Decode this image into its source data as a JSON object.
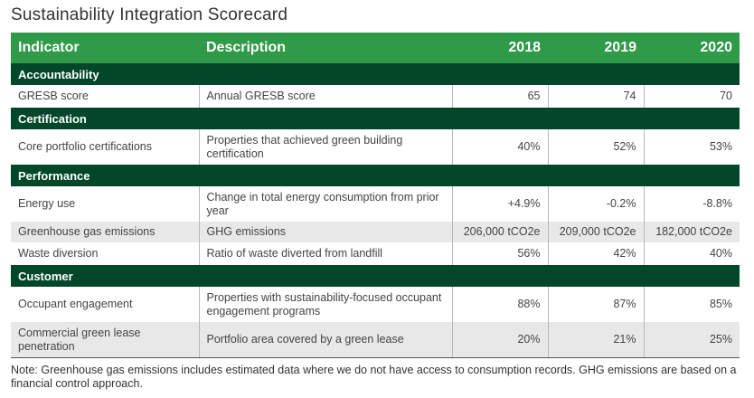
{
  "title": "Sustainability Integration Scorecard",
  "headers": [
    "Indicator",
    "Description",
    "2018",
    "2019",
    "2020"
  ],
  "sections": [
    {
      "name": "Accountability",
      "rows": [
        {
          "indicator": "GRESB score",
          "description": "Annual GRESB score",
          "values": [
            "65",
            "74",
            "70"
          ]
        }
      ]
    },
    {
      "name": "Certification",
      "rows": [
        {
          "indicator": "Core portfolio certifications",
          "description": "Properties that achieved green building certification",
          "values": [
            "40%",
            "52%",
            "53%"
          ]
        }
      ]
    },
    {
      "name": "Performance",
      "rows": [
        {
          "indicator": "Energy use",
          "description": "Change in total energy consumption from prior year",
          "values": [
            "+4.9%",
            "-0.2%",
            "-8.8%"
          ]
        },
        {
          "indicator": "Greenhouse gas emissions",
          "description": "GHG emissions",
          "values": [
            "206,000 tCO2e",
            "209,000 tCO2e",
            "182,000 tCO2e"
          ]
        },
        {
          "indicator": "Waste diversion",
          "description": "Ratio of waste diverted from landfill",
          "values": [
            "56%",
            "42%",
            "40%"
          ]
        }
      ]
    },
    {
      "name": "Customer",
      "rows": [
        {
          "indicator": "Occupant engagement",
          "description": "Properties with sustainability-focused occupant engagement programs",
          "values": [
            "88%",
            "87%",
            "85%"
          ]
        },
        {
          "indicator": "Commercial green lease penetration",
          "description": "Portfolio area covered by a green lease",
          "values": [
            "20%",
            "21%",
            "25%"
          ]
        }
      ]
    }
  ],
  "note": "Note: Greenhouse gas emissions includes estimated data where we do not have access to consumption records. GHG emissions are based on a financial control approach.",
  "colors": {
    "header": "#2f9a47",
    "section": "#03472a",
    "stripe": "#e8e8e8"
  }
}
